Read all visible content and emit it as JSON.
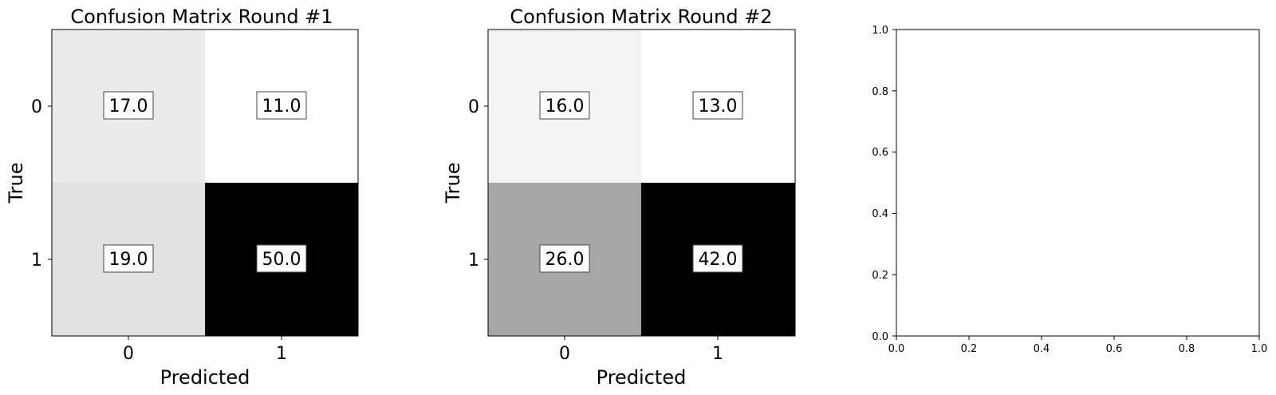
{
  "chart_data": [
    {
      "type": "heatmap",
      "title": "Confusion Matrix Round #1",
      "xlabel": "Predicted",
      "ylabel": "True",
      "x_ticks": [
        "0",
        "1"
      ],
      "y_ticks": [
        "0",
        "1"
      ],
      "matrix": [
        [
          17.0,
          11.0
        ],
        [
          19.0,
          50.0
        ]
      ],
      "cell_labels": [
        [
          "17.0",
          "11.0"
        ],
        [
          "19.0",
          "50.0"
        ]
      ],
      "colormap": "Greys"
    },
    {
      "type": "heatmap",
      "title": "Confusion Matrix Round #2",
      "xlabel": "Predicted",
      "ylabel": "True",
      "x_ticks": [
        "0",
        "1"
      ],
      "y_ticks": [
        "0",
        "1"
      ],
      "matrix": [
        [
          16.0,
          13.0
        ],
        [
          26.0,
          42.0
        ]
      ],
      "cell_labels": [
        [
          "16.0",
          "13.0"
        ],
        [
          "26.0",
          "42.0"
        ]
      ],
      "colormap": "Greys"
    },
    {
      "type": "empty",
      "xlim": [
        0.0,
        1.0
      ],
      "ylim": [
        0.0,
        1.0
      ],
      "x_ticks": [
        "0.0",
        "0.2",
        "0.4",
        "0.6",
        "0.8",
        "1.0"
      ],
      "y_ticks": [
        "0.0",
        "0.2",
        "0.4",
        "0.6",
        "0.8",
        "1.0"
      ]
    }
  ]
}
